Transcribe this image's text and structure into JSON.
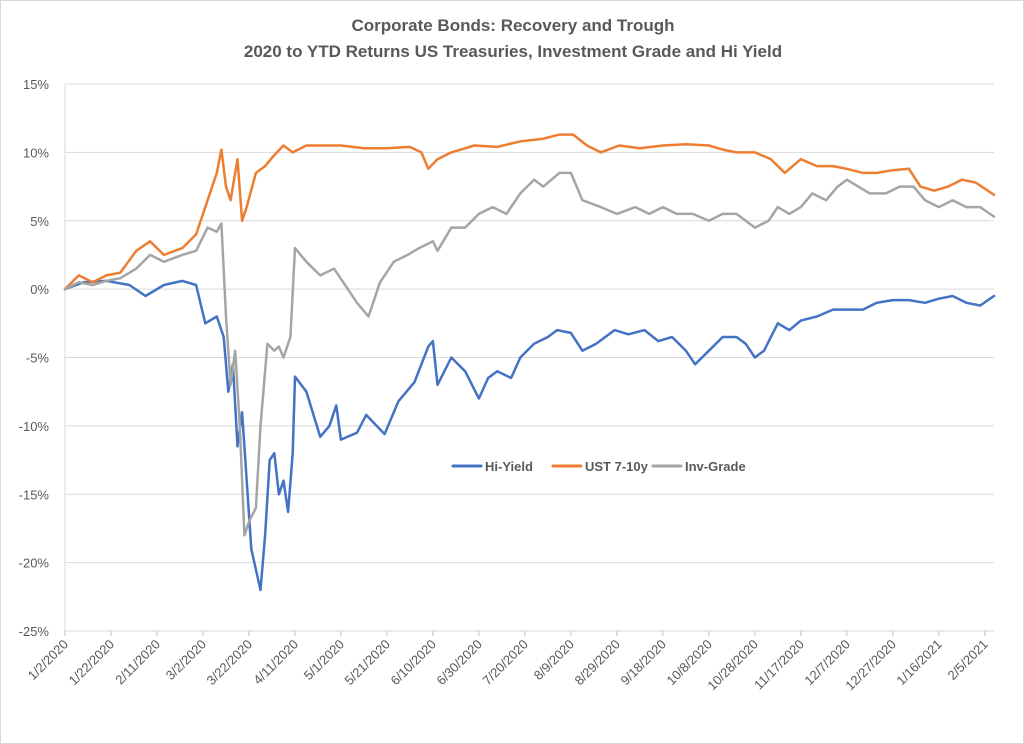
{
  "chart_data": {
    "type": "line",
    "title": "Corporate Bonds: Recovery and Trough",
    "subtitle": "2020 to YTD Returns US Treasuries, Investment Grade and Hi Yield",
    "xlabel": "",
    "ylabel": "",
    "ylim": [
      -25,
      15
    ],
    "y_ticks": [
      "15%",
      "10%",
      "5%",
      "0%",
      "-5%",
      "-10%",
      "-15%",
      "-20%",
      "-25%"
    ],
    "x_range": [
      "2020-01-02",
      "2021-02-09"
    ],
    "x_ticks": [
      "1/2/2020",
      "1/22/2020",
      "2/11/2020",
      "3/2/2020",
      "3/22/2020",
      "4/11/2020",
      "5/1/2020",
      "5/21/2020",
      "6/10/2020",
      "6/30/2020",
      "7/20/2020",
      "8/9/2020",
      "8/29/2020",
      "9/18/2020",
      "10/8/2020",
      "10/28/2020",
      "11/17/2020",
      "12/7/2020",
      "12/27/2020",
      "1/16/2021",
      "2/5/2021"
    ],
    "grid": "horizontal",
    "legend_position": "inside-center-right",
    "series": [
      {
        "name": "Hi-Yield",
        "color": "#4472c4",
        "points": [
          [
            "2020-01-02",
            0
          ],
          [
            "2020-01-10",
            0.5
          ],
          [
            "2020-01-20",
            0.6
          ],
          [
            "2020-01-30",
            0.3
          ],
          [
            "2020-02-06",
            -0.5
          ],
          [
            "2020-02-14",
            0.3
          ],
          [
            "2020-02-22",
            0.6
          ],
          [
            "2020-02-28",
            0.3
          ],
          [
            "2020-03-03",
            -2.5
          ],
          [
            "2020-03-08",
            -2.0
          ],
          [
            "2020-03-11",
            -3.5
          ],
          [
            "2020-03-13",
            -7.5
          ],
          [
            "2020-03-15",
            -5.5
          ],
          [
            "2020-03-17",
            -11.5
          ],
          [
            "2020-03-19",
            -9.0
          ],
          [
            "2020-03-21",
            -14.0
          ],
          [
            "2020-03-23",
            -19.0
          ],
          [
            "2020-03-27",
            -22.0
          ],
          [
            "2020-03-29",
            -18.0
          ],
          [
            "2020-03-31",
            -12.5
          ],
          [
            "2020-04-02",
            -12.0
          ],
          [
            "2020-04-04",
            -15.0
          ],
          [
            "2020-04-06",
            -14.0
          ],
          [
            "2020-04-08",
            -16.3
          ],
          [
            "2020-04-10",
            -12.0
          ],
          [
            "2020-04-11",
            -6.4
          ],
          [
            "2020-04-16",
            -7.5
          ],
          [
            "2020-04-22",
            -10.8
          ],
          [
            "2020-04-26",
            -10.0
          ],
          [
            "2020-04-29",
            -8.5
          ],
          [
            "2020-05-01",
            -11.0
          ],
          [
            "2020-05-08",
            -10.5
          ],
          [
            "2020-05-12",
            -9.2
          ],
          [
            "2020-05-20",
            -10.6
          ],
          [
            "2020-05-26",
            -8.2
          ],
          [
            "2020-06-02",
            -6.8
          ],
          [
            "2020-06-08",
            -4.2
          ],
          [
            "2020-06-10",
            -3.8
          ],
          [
            "2020-06-12",
            -7.0
          ],
          [
            "2020-06-18",
            -5.0
          ],
          [
            "2020-06-24",
            -6.0
          ],
          [
            "2020-06-30",
            -8.0
          ],
          [
            "2020-07-04",
            -6.5
          ],
          [
            "2020-07-08",
            -6.0
          ],
          [
            "2020-07-14",
            -6.5
          ],
          [
            "2020-07-18",
            -5.0
          ],
          [
            "2020-07-24",
            -4.0
          ],
          [
            "2020-07-30",
            -3.5
          ],
          [
            "2020-08-03",
            -3.0
          ],
          [
            "2020-08-09",
            -3.2
          ],
          [
            "2020-08-14",
            -4.5
          ],
          [
            "2020-08-20",
            -4.0
          ],
          [
            "2020-08-28",
            -3.0
          ],
          [
            "2020-09-03",
            -3.3
          ],
          [
            "2020-09-10",
            -3.0
          ],
          [
            "2020-09-16",
            -3.8
          ],
          [
            "2020-09-22",
            -3.5
          ],
          [
            "2020-09-28",
            -4.5
          ],
          [
            "2020-10-02",
            -5.5
          ],
          [
            "2020-10-08",
            -4.5
          ],
          [
            "2020-10-14",
            -3.5
          ],
          [
            "2020-10-20",
            -3.5
          ],
          [
            "2020-10-24",
            -4.0
          ],
          [
            "2020-10-28",
            -5.0
          ],
          [
            "2020-11-01",
            -4.5
          ],
          [
            "2020-11-07",
            -2.5
          ],
          [
            "2020-11-12",
            -3.0
          ],
          [
            "2020-11-17",
            -2.3
          ],
          [
            "2020-11-24",
            -2.0
          ],
          [
            "2020-12-01",
            -1.5
          ],
          [
            "2020-12-07",
            -1.5
          ],
          [
            "2020-12-14",
            -1.5
          ],
          [
            "2020-12-20",
            -1.0
          ],
          [
            "2020-12-27",
            -0.8
          ],
          [
            "2021-01-03",
            -0.8
          ],
          [
            "2021-01-10",
            -1.0
          ],
          [
            "2021-01-16",
            -0.7
          ],
          [
            "2021-01-22",
            -0.5
          ],
          [
            "2021-01-28",
            -1.0
          ],
          [
            "2021-02-03",
            -1.2
          ],
          [
            "2021-02-09",
            -0.5
          ]
        ]
      },
      {
        "name": "UST 7-10y",
        "color": "#ed7d31",
        "points": [
          [
            "2020-01-02",
            0
          ],
          [
            "2020-01-08",
            1.0
          ],
          [
            "2020-01-14",
            0.5
          ],
          [
            "2020-01-20",
            1.0
          ],
          [
            "2020-01-26",
            1.2
          ],
          [
            "2020-02-02",
            2.8
          ],
          [
            "2020-02-08",
            3.5
          ],
          [
            "2020-02-14",
            2.5
          ],
          [
            "2020-02-22",
            3.0
          ],
          [
            "2020-02-28",
            4.0
          ],
          [
            "2020-03-03",
            6.0
          ],
          [
            "2020-03-08",
            8.5
          ],
          [
            "2020-03-10",
            10.2
          ],
          [
            "2020-03-12",
            7.5
          ],
          [
            "2020-03-14",
            6.5
          ],
          [
            "2020-03-17",
            9.5
          ],
          [
            "2020-03-19",
            5.0
          ],
          [
            "2020-03-21",
            6.0
          ],
          [
            "2020-03-25",
            8.5
          ],
          [
            "2020-03-29",
            9.0
          ],
          [
            "2020-04-02",
            9.8
          ],
          [
            "2020-04-06",
            10.5
          ],
          [
            "2020-04-10",
            10.0
          ],
          [
            "2020-04-16",
            10.5
          ],
          [
            "2020-04-22",
            10.5
          ],
          [
            "2020-05-01",
            10.5
          ],
          [
            "2020-05-11",
            10.3
          ],
          [
            "2020-05-21",
            10.3
          ],
          [
            "2020-05-31",
            10.4
          ],
          [
            "2020-06-05",
            10.0
          ],
          [
            "2020-06-08",
            8.8
          ],
          [
            "2020-06-12",
            9.5
          ],
          [
            "2020-06-18",
            10.0
          ],
          [
            "2020-06-28",
            10.5
          ],
          [
            "2020-07-08",
            10.4
          ],
          [
            "2020-07-18",
            10.8
          ],
          [
            "2020-07-28",
            11.0
          ],
          [
            "2020-08-04",
            11.3
          ],
          [
            "2020-08-10",
            11.3
          ],
          [
            "2020-08-16",
            10.5
          ],
          [
            "2020-08-22",
            10.0
          ],
          [
            "2020-08-30",
            10.5
          ],
          [
            "2020-09-08",
            10.3
          ],
          [
            "2020-09-18",
            10.5
          ],
          [
            "2020-09-28",
            10.6
          ],
          [
            "2020-10-08",
            10.5
          ],
          [
            "2020-10-14",
            10.2
          ],
          [
            "2020-10-20",
            10.0
          ],
          [
            "2020-10-28",
            10.0
          ],
          [
            "2020-11-04",
            9.5
          ],
          [
            "2020-11-10",
            8.5
          ],
          [
            "2020-11-17",
            9.5
          ],
          [
            "2020-11-24",
            9.0
          ],
          [
            "2020-12-01",
            9.0
          ],
          [
            "2020-12-07",
            8.8
          ],
          [
            "2020-12-14",
            8.5
          ],
          [
            "2020-12-20",
            8.5
          ],
          [
            "2020-12-27",
            8.7
          ],
          [
            "2021-01-03",
            8.8
          ],
          [
            "2021-01-08",
            7.5
          ],
          [
            "2021-01-14",
            7.2
          ],
          [
            "2021-01-20",
            7.5
          ],
          [
            "2021-01-26",
            8.0
          ],
          [
            "2021-02-01",
            7.8
          ],
          [
            "2021-02-09",
            6.9
          ]
        ]
      },
      {
        "name": "Inv-Grade",
        "color": "#a5a5a5",
        "points": [
          [
            "2020-01-02",
            0
          ],
          [
            "2020-01-08",
            0.5
          ],
          [
            "2020-01-14",
            0.3
          ],
          [
            "2020-01-20",
            0.6
          ],
          [
            "2020-01-26",
            0.8
          ],
          [
            "2020-02-02",
            1.5
          ],
          [
            "2020-02-08",
            2.5
          ],
          [
            "2020-02-14",
            2.0
          ],
          [
            "2020-02-22",
            2.5
          ],
          [
            "2020-02-28",
            2.8
          ],
          [
            "2020-03-04",
            4.5
          ],
          [
            "2020-03-08",
            4.2
          ],
          [
            "2020-03-10",
            4.8
          ],
          [
            "2020-03-12",
            -2.0
          ],
          [
            "2020-03-14",
            -7.0
          ],
          [
            "2020-03-16",
            -4.5
          ],
          [
            "2020-03-18",
            -10.0
          ],
          [
            "2020-03-20",
            -18.0
          ],
          [
            "2020-03-22",
            -17.0
          ],
          [
            "2020-03-25",
            -16.0
          ],
          [
            "2020-03-27",
            -10.0
          ],
          [
            "2020-03-30",
            -4.0
          ],
          [
            "2020-04-02",
            -4.5
          ],
          [
            "2020-04-04",
            -4.2
          ],
          [
            "2020-04-06",
            -5.0
          ],
          [
            "2020-04-09",
            -3.5
          ],
          [
            "2020-04-11",
            3.0
          ],
          [
            "2020-04-16",
            2.0
          ],
          [
            "2020-04-22",
            1.0
          ],
          [
            "2020-04-28",
            1.5
          ],
          [
            "2020-05-04",
            0.0
          ],
          [
            "2020-05-08",
            -1.0
          ],
          [
            "2020-05-13",
            -2.0
          ],
          [
            "2020-05-18",
            0.5
          ],
          [
            "2020-05-24",
            2.0
          ],
          [
            "2020-05-30",
            2.5
          ],
          [
            "2020-06-04",
            3.0
          ],
          [
            "2020-06-10",
            3.5
          ],
          [
            "2020-06-12",
            2.8
          ],
          [
            "2020-06-18",
            4.5
          ],
          [
            "2020-06-24",
            4.5
          ],
          [
            "2020-06-30",
            5.5
          ],
          [
            "2020-07-06",
            6.0
          ],
          [
            "2020-07-12",
            5.5
          ],
          [
            "2020-07-18",
            7.0
          ],
          [
            "2020-07-24",
            8.0
          ],
          [
            "2020-07-28",
            7.5
          ],
          [
            "2020-08-04",
            8.5
          ],
          [
            "2020-08-09",
            8.5
          ],
          [
            "2020-08-14",
            6.5
          ],
          [
            "2020-08-22",
            6.0
          ],
          [
            "2020-08-29",
            5.5
          ],
          [
            "2020-09-06",
            6.0
          ],
          [
            "2020-09-12",
            5.5
          ],
          [
            "2020-09-18",
            6.0
          ],
          [
            "2020-09-24",
            5.5
          ],
          [
            "2020-10-01",
            5.5
          ],
          [
            "2020-10-08",
            5.0
          ],
          [
            "2020-10-14",
            5.5
          ],
          [
            "2020-10-20",
            5.5
          ],
          [
            "2020-10-28",
            4.5
          ],
          [
            "2020-11-03",
            5.0
          ],
          [
            "2020-11-07",
            6.0
          ],
          [
            "2020-11-12",
            5.5
          ],
          [
            "2020-11-17",
            6.0
          ],
          [
            "2020-11-22",
            7.0
          ],
          [
            "2020-11-28",
            6.5
          ],
          [
            "2020-12-03",
            7.5
          ],
          [
            "2020-12-07",
            8.0
          ],
          [
            "2020-12-12",
            7.5
          ],
          [
            "2020-12-17",
            7.0
          ],
          [
            "2020-12-24",
            7.0
          ],
          [
            "2020-12-30",
            7.5
          ],
          [
            "2021-01-05",
            7.5
          ],
          [
            "2021-01-10",
            6.5
          ],
          [
            "2021-01-16",
            6.0
          ],
          [
            "2021-01-22",
            6.5
          ],
          [
            "2021-01-28",
            6.0
          ],
          [
            "2021-02-03",
            6.0
          ],
          [
            "2021-02-09",
            5.3
          ]
        ]
      }
    ]
  }
}
